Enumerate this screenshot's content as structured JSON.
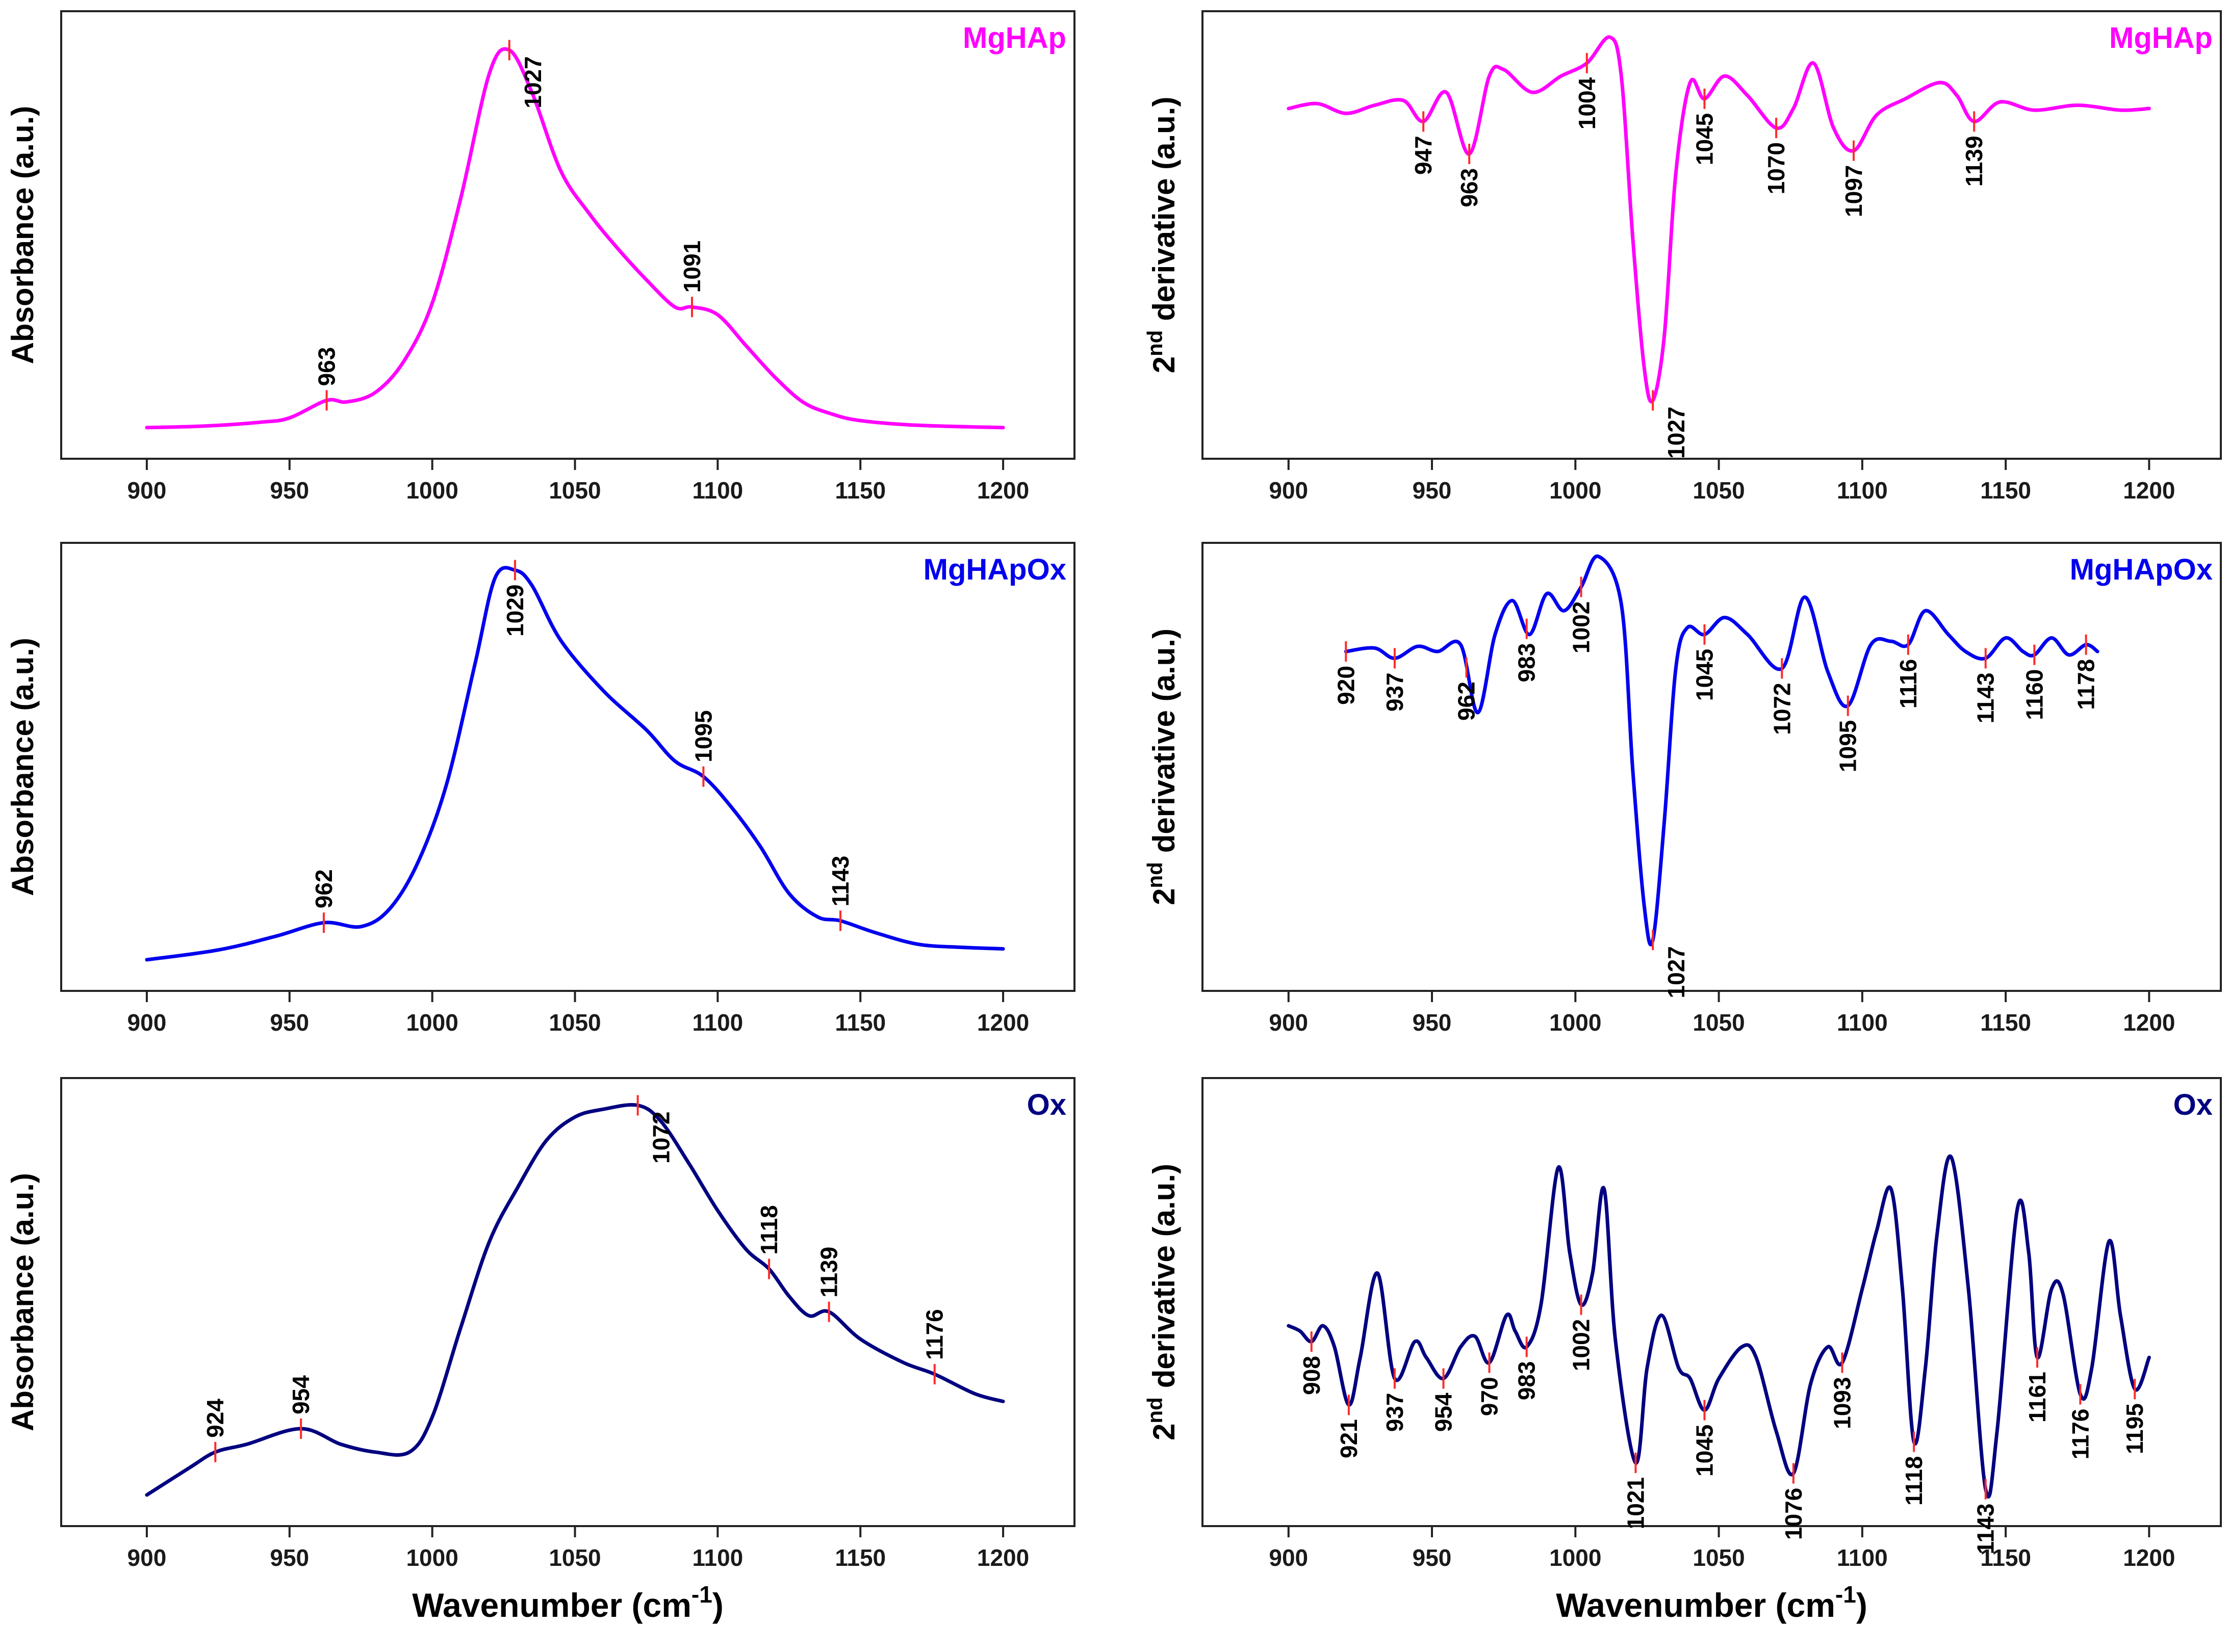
{
  "chart_data": [
    {
      "id": "mghap-abs",
      "type": "line",
      "series_name": "MgHAp",
      "color": "#ff00ff",
      "ylabel": "Absorbance (a.u.)",
      "xlabel": "",
      "xlim": [
        870,
        1225
      ],
      "ylim": [
        -0.08,
        1.07
      ],
      "xticks": [
        "900",
        "950",
        "1000",
        "1050",
        "1100",
        "1150",
        "1200"
      ],
      "x": [
        900,
        920,
        940,
        950,
        963,
        970,
        980,
        990,
        1000,
        1010,
        1020,
        1027,
        1035,
        1045,
        1055,
        1065,
        1075,
        1085,
        1091,
        1100,
        1110,
        1120,
        1130,
        1140,
        1150,
        1170,
        1200
      ],
      "y": [
        0.0,
        0.004,
        0.014,
        0.025,
        0.07,
        0.066,
        0.09,
        0.17,
        0.32,
        0.59,
        0.91,
        0.97,
        0.86,
        0.66,
        0.55,
        0.46,
        0.38,
        0.31,
        0.31,
        0.29,
        0.21,
        0.13,
        0.065,
        0.035,
        0.018,
        0.006,
        0.0
      ],
      "peaks": [
        {
          "x": 963,
          "label": "963",
          "pos": "above"
        },
        {
          "x": 1027,
          "label": "1027",
          "pos": "right"
        },
        {
          "x": 1091,
          "label": "1091",
          "pos": "above"
        }
      ]
    },
    {
      "id": "mghap-d2",
      "type": "line",
      "series_name": "MgHAp",
      "color": "#ff00ff",
      "ylabel": "2nd derivative (a.u.)",
      "ylabel_main": "2",
      "ylabel_sup": "nd",
      "ylabel_rest": "derivative (a.u.)",
      "xlabel": "",
      "xlim": [
        870,
        1225
      ],
      "ylim": [
        -1.08,
        0.3
      ],
      "xticks": [
        "900",
        "950",
        "1000",
        "1050",
        "1100",
        "1150",
        "1200"
      ],
      "x": [
        900,
        910,
        920,
        930,
        940,
        947,
        955,
        963,
        970,
        975,
        985,
        995,
        1004,
        1012,
        1016,
        1020,
        1024,
        1027,
        1031,
        1035,
        1040,
        1045,
        1052,
        1060,
        1070,
        1076,
        1083,
        1090,
        1097,
        1105,
        1115,
        1127,
        1133,
        1139,
        1148,
        1160,
        1175,
        1190,
        1200
      ],
      "y": [
        0,
        0.015,
        -0.015,
        0.01,
        0.025,
        -0.04,
        0.05,
        -0.14,
        0.1,
        0.12,
        0.05,
        0.1,
        0.14,
        0.22,
        0.1,
        -0.4,
        -0.8,
        -0.9,
        -0.7,
        -0.2,
        0.08,
        0.03,
        0.1,
        0.04,
        -0.06,
        0.0,
        0.14,
        -0.06,
        -0.13,
        -0.02,
        0.03,
        0.08,
        0.04,
        -0.04,
        0.02,
        -0.005,
        0.01,
        -0.005,
        0.0
      ],
      "peaks": [
        {
          "x": 947,
          "label": "947",
          "pos": "below"
        },
        {
          "x": 963,
          "label": "963",
          "pos": "below"
        },
        {
          "x": 1004,
          "label": "1004",
          "pos": "below"
        },
        {
          "x": 1027,
          "label": "1027",
          "pos": "right"
        },
        {
          "x": 1045,
          "label": "1045",
          "pos": "below"
        },
        {
          "x": 1070,
          "label": "1070",
          "pos": "below"
        },
        {
          "x": 1097,
          "label": "1097",
          "pos": "below"
        },
        {
          "x": 1139,
          "label": "1139",
          "pos": "below"
        }
      ]
    },
    {
      "id": "mghapox-abs",
      "type": "line",
      "series_name": "MgHAp­Ox",
      "color": "#0000ee",
      "ylabel": "Absorbance (a.u.)",
      "xlabel": "",
      "xlim": [
        870,
        1225
      ],
      "ylim": [
        -0.08,
        1.07
      ],
      "xticks": [
        "900",
        "950",
        "1000",
        "1050",
        "1100",
        "1150",
        "1200"
      ],
      "x": [
        900,
        925,
        945,
        962,
        975,
        985,
        995,
        1005,
        1015,
        1022,
        1029,
        1035,
        1045,
        1060,
        1075,
        1085,
        1095,
        1105,
        1115,
        1125,
        1135,
        1143,
        1155,
        1170,
        1185,
        1200
      ],
      "y": [
        0.0,
        0.025,
        0.06,
        0.095,
        0.085,
        0.13,
        0.25,
        0.45,
        0.76,
        0.98,
        1.0,
        0.96,
        0.82,
        0.69,
        0.59,
        0.51,
        0.47,
        0.39,
        0.29,
        0.17,
        0.11,
        0.1,
        0.07,
        0.04,
        0.032,
        0.028
      ],
      "peaks": [
        {
          "x": 962,
          "label": "962",
          "pos": "above"
        },
        {
          "x": 1029,
          "label": "1029",
          "pos": "below"
        },
        {
          "x": 1095,
          "label": "1095",
          "pos": "above"
        },
        {
          "x": 1143,
          "label": "1143",
          "pos": "above"
        }
      ]
    },
    {
      "id": "mghapox-d2",
      "type": "line",
      "series_name": "MgHApOx",
      "color": "#0000ee",
      "ylabel": "2nd derivative (a.u.)",
      "ylabel_main": "2",
      "ylabel_sup": "nd",
      "ylabel_rest": "derivative (a.u.)",
      "xlabel": "",
      "xlim": [
        870,
        1225
      ],
      "ylim": [
        -1.0,
        0.32
      ],
      "xticks": [
        "900",
        "950",
        "1000",
        "1050",
        "1100",
        "1150",
        "1200"
      ],
      "x": [
        920,
        930,
        937,
        945,
        952,
        960,
        966,
        972,
        978,
        984,
        990,
        996,
        1002,
        1008,
        1016,
        1020,
        1024,
        1027,
        1031,
        1035,
        1039,
        1045,
        1052,
        1060,
        1072,
        1080,
        1088,
        1095,
        1103,
        1110,
        1116,
        1122,
        1130,
        1136,
        1143,
        1150,
        1156,
        1160,
        1166,
        1172,
        1178,
        1182
      ],
      "y": [
        0,
        0.01,
        -0.02,
        0.015,
        0.0,
        0.02,
        -0.18,
        0.05,
        0.15,
        0.05,
        0.17,
        0.12,
        0.19,
        0.28,
        0.14,
        -0.35,
        -0.75,
        -0.85,
        -0.5,
        -0.05,
        0.07,
        0.05,
        0.1,
        0.05,
        -0.05,
        0.16,
        -0.06,
        -0.16,
        0.02,
        0.03,
        0.02,
        0.12,
        0.05,
        0.0,
        -0.02,
        0.04,
        0.0,
        -0.01,
        0.04,
        -0.01,
        0.02,
        0.0
      ],
      "peaks": [
        {
          "x": 920,
          "label": "920",
          "pos": "below"
        },
        {
          "x": 937,
          "label": "937",
          "pos": "below"
        },
        {
          "x": 962,
          "label": "962",
          "pos": "below"
        },
        {
          "x": 983,
          "label": "983",
          "pos": "below"
        },
        {
          "x": 1002,
          "label": "1002",
          "pos": "below"
        },
        {
          "x": 1027,
          "label": "1027",
          "pos": "right"
        },
        {
          "x": 1045,
          "label": "1045",
          "pos": "below"
        },
        {
          "x": 1072,
          "label": "1072",
          "pos": "below"
        },
        {
          "x": 1095,
          "label": "1095",
          "pos": "below"
        },
        {
          "x": 1116,
          "label": "1116",
          "pos": "below"
        },
        {
          "x": 1143,
          "label": "1143",
          "pos": "below"
        },
        {
          "x": 1160,
          "label": "1160",
          "pos": "below"
        },
        {
          "x": 1178,
          "label": "1178",
          "pos": "below"
        }
      ]
    },
    {
      "id": "ox-abs",
      "type": "line",
      "series_name": "Ox",
      "color": "#000080",
      "ylabel": "Absorbance (a.u.)",
      "xlabel": "Wavenumber (cm-1)",
      "xlabel_main": "Wavenumber (cm",
      "xlabel_sup": "-1",
      "xlabel_end": ")",
      "xlim": [
        870,
        1225
      ],
      "ylim": [
        -0.08,
        1.07
      ],
      "xticks": [
        "900",
        "950",
        "1000",
        "1050",
        "1100",
        "1150",
        "1200"
      ],
      "x": [
        900,
        915,
        924,
        935,
        954,
        968,
        980,
        992,
        1000,
        1010,
        1020,
        1030,
        1040,
        1050,
        1060,
        1072,
        1080,
        1090,
        1100,
        1110,
        1118,
        1125,
        1132,
        1139,
        1150,
        1165,
        1176,
        1190,
        1200
      ],
      "y": [
        0.0,
        0.07,
        0.11,
        0.13,
        0.17,
        0.13,
        0.11,
        0.11,
        0.2,
        0.43,
        0.65,
        0.79,
        0.91,
        0.97,
        0.99,
        1.0,
        0.96,
        0.85,
        0.73,
        0.63,
        0.58,
        0.51,
        0.46,
        0.47,
        0.4,
        0.34,
        0.31,
        0.26,
        0.24
      ],
      "peaks": [
        {
          "x": 924,
          "label": "924",
          "pos": "above"
        },
        {
          "x": 954,
          "label": "954",
          "pos": "above"
        },
        {
          "x": 1072,
          "label": "1072",
          "pos": "right"
        },
        {
          "x": 1118,
          "label": "1118",
          "pos": "above"
        },
        {
          "x": 1139,
          "label": "1139",
          "pos": "above"
        },
        {
          "x": 1176,
          "label": "1176",
          "pos": "above"
        }
      ]
    },
    {
      "id": "ox-d2",
      "type": "line",
      "series_name": "Ox",
      "color": "#000080",
      "ylabel": "2nd derivative (a.u.)",
      "ylabel_main": "2",
      "ylabel_sup": "nd",
      "ylabel_rest": "derivative (a.u.)",
      "xlabel": "Wavenumber (cm-1)",
      "xlabel_main": "Wavenumber (cm",
      "xlabel_sup": "-1",
      "xlabel_end": ")",
      "xlim": [
        870,
        1225
      ],
      "ylim": [
        -0.4,
        0.45
      ],
      "xticks": [
        "900",
        "950",
        "1000",
        "1050",
        "1100",
        "1150",
        "1200"
      ],
      "x": [
        900,
        904,
        908,
        912,
        916,
        921,
        925,
        931,
        937,
        944,
        948,
        954,
        960,
        965,
        970,
        976,
        979,
        983,
        988,
        994,
        998,
        1002,
        1006,
        1010,
        1014,
        1021,
        1025,
        1030,
        1036,
        1040,
        1045,
        1050,
        1058,
        1063,
        1070,
        1076,
        1082,
        1088,
        1093,
        1100,
        1105,
        1110,
        1114,
        1118,
        1122,
        1126,
        1131,
        1137,
        1143,
        1147,
        1154,
        1158,
        1161,
        1166,
        1170,
        1176,
        1180,
        1186,
        1190,
        1195,
        1200
      ],
      "y": [
        -0.02,
        -0.03,
        -0.05,
        -0.02,
        -0.06,
        -0.17,
        -0.08,
        0.08,
        -0.12,
        -0.05,
        -0.08,
        -0.12,
        -0.06,
        -0.04,
        -0.09,
        0.0,
        -0.03,
        -0.06,
        0.02,
        0.28,
        0.12,
        0.02,
        0.08,
        0.24,
        -0.05,
        -0.28,
        -0.1,
        0.0,
        -0.1,
        -0.12,
        -0.18,
        -0.12,
        -0.06,
        -0.08,
        -0.22,
        -0.3,
        -0.13,
        -0.06,
        -0.09,
        0.05,
        0.16,
        0.24,
        0.05,
        -0.24,
        -0.1,
        0.15,
        0.3,
        0.05,
        -0.33,
        -0.22,
        0.2,
        0.12,
        -0.08,
        0.05,
        0.04,
        -0.15,
        -0.1,
        0.14,
        0.0,
        -0.14,
        -0.08
      ],
      "peaks": [
        {
          "x": 908,
          "label": "908",
          "pos": "below"
        },
        {
          "x": 921,
          "label": "921",
          "pos": "below"
        },
        {
          "x": 937,
          "label": "937",
          "pos": "below"
        },
        {
          "x": 954,
          "label": "954",
          "pos": "below"
        },
        {
          "x": 970,
          "label": "970",
          "pos": "below"
        },
        {
          "x": 983,
          "label": "983",
          "pos": "below"
        },
        {
          "x": 1002,
          "label": "1002",
          "pos": "below"
        },
        {
          "x": 1021,
          "label": "1021",
          "pos": "below"
        },
        {
          "x": 1045,
          "label": "1045",
          "pos": "below"
        },
        {
          "x": 1076,
          "label": "1076",
          "pos": "below"
        },
        {
          "x": 1093,
          "label": "1093",
          "pos": "below"
        },
        {
          "x": 1118,
          "label": "1118",
          "pos": "below"
        },
        {
          "x": 1143,
          "label": "1143",
          "pos": "below"
        },
        {
          "x": 1161,
          "label": "1161",
          "pos": "below"
        },
        {
          "x": 1176,
          "label": "1176",
          "pos": "below"
        },
        {
          "x": 1195,
          "label": "1195",
          "pos": "below"
        }
      ]
    }
  ]
}
